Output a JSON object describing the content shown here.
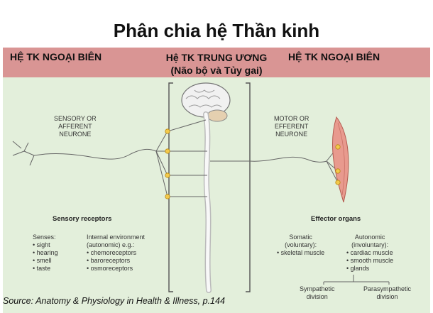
{
  "title": "Phân chia hệ Thần kinh",
  "header": {
    "left": "HỆ TK NGOẠI BIÊN",
    "center_line1": "Hệ TK TRUNG ƯƠNG",
    "center_line2": "(Não bộ và Tủy gai)",
    "right": "HỆ TK NGOẠI BIÊN"
  },
  "left_panel": {
    "neurone_label": [
      "SENSORY OR",
      "AFFERENT",
      "NEURONE"
    ],
    "receptors_title": "Sensory receptors",
    "senses_title": "Senses:",
    "senses": [
      "sight",
      "hearing",
      "smell",
      "taste"
    ],
    "internal_title": [
      "Internal environment",
      "(autonomic) e.g.:"
    ],
    "internal": [
      "chemoreceptors",
      "baroreceptors",
      "osmoreceptors"
    ]
  },
  "right_panel": {
    "neurone_label": [
      "MOTOR OR",
      "EFFERENT",
      "NEURONE"
    ],
    "effector_title": "Effector organs",
    "somatic_title": [
      "Somatic",
      "(voluntary):"
    ],
    "somatic": [
      "skeletal muscle"
    ],
    "autonomic_title": [
      "Autonomic",
      "(involuntary):"
    ],
    "autonomic": [
      "cardiac muscle",
      "smooth muscle",
      "glands"
    ],
    "sympathetic": [
      "Sympathetic",
      "division"
    ],
    "parasympathetic": [
      "Parasympathetic",
      "division"
    ]
  },
  "source": "Source: Anatomy & Physiology in Health & Illness, p.144",
  "colors": {
    "header_band": "#d99594",
    "diagram_bg": "#e3efdb",
    "node": "#f2c94c",
    "muscle": "#e89a8e"
  }
}
